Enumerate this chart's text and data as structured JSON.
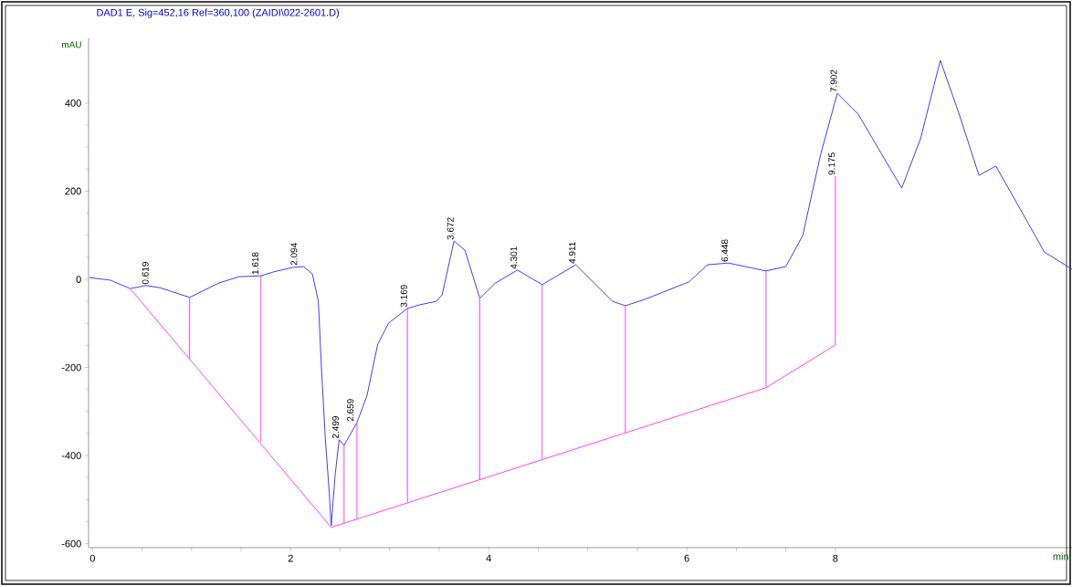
{
  "chart_data": {
    "type": "line",
    "title": "DAD1 E, Sig=452,16 Ref=360,100 (ZAIDI\\022-2601.D)",
    "xlabel": "min",
    "ylabel": "mAU",
    "xlim": [
      -0.04,
      9.89
    ],
    "ylim": [
      -609,
      547
    ],
    "xticks": [
      0,
      {
        "value": 0.5,
        "label": null
      },
      {
        "value": 1,
        "label": null
      },
      {
        "value": 1.5,
        "label": null
      },
      2,
      {
        "value": 2.5,
        "label": null
      },
      {
        "value": 3,
        "label": null
      },
      {
        "value": 3.5,
        "label": null
      },
      4,
      {
        "value": 4.5,
        "label": null
      },
      {
        "value": 5,
        "label": null
      },
      {
        "value": 5.5,
        "label": null
      },
      6,
      {
        "value": 6.5,
        "label": null
      },
      {
        "value": 7,
        "label": null
      },
      {
        "value": 7.5,
        "label": "8"
      }
    ],
    "yticks": [
      -600,
      -400,
      -200,
      0,
      200,
      400
    ],
    "series": [
      {
        "color": "#3d3dff",
        "x": [
          -0.03,
          0.18,
          0.38,
          0.54,
          0.68,
          0.98,
          1.28,
          1.48,
          1.7,
          1.83,
          2.02,
          2.13,
          2.22,
          2.28,
          2.31,
          2.35,
          2.39,
          2.41,
          2.45,
          2.49,
          2.54,
          2.67,
          2.77,
          2.88,
          2.99,
          3.18,
          3.3,
          3.47,
          3.53,
          3.65,
          3.76,
          3.91,
          4.07,
          4.29,
          4.54,
          4.88,
          5.25,
          5.38,
          5.57,
          6.02,
          6.21,
          6.42,
          6.8,
          7.0,
          7.17,
          7.35,
          7.52,
          7.73,
          8.17,
          8.36,
          8.56,
          8.75,
          8.95,
          9.12,
          9.3,
          9.61,
          9.89
        ],
        "values": [
          4,
          -2,
          -21,
          -14,
          -19,
          -41,
          -8,
          6,
          8,
          17,
          27,
          29,
          12,
          -50,
          -195,
          -360,
          -484,
          -559,
          -443,
          -364,
          -377,
          -325,
          -265,
          -147,
          -99,
          -66,
          -58,
          -50,
          -35,
          87,
          66,
          -43,
          -8,
          21,
          -12,
          33,
          -50,
          -60,
          -46,
          -6,
          33,
          37,
          19,
          29,
          99,
          282,
          422,
          375,
          207,
          319,
          497,
          375,
          236,
          257,
          186,
          62,
          23
        ]
      },
      {
        "color": "#ff40ff",
        "x": [
          0.38,
          2.41,
          6.8,
          7.5
        ],
        "values": [
          -21,
          -563,
          -246,
          -149
        ]
      },
      {
        "color": "#ff40ff",
        "x": [
          0.98,
          0.98,
          null,
          1.7,
          1.7,
          null,
          2.54,
          2.54,
          null,
          2.67,
          2.67,
          null,
          3.18,
          3.18,
          null,
          3.91,
          3.91,
          null,
          4.54,
          4.54,
          null,
          5.38,
          5.38,
          null,
          6.8,
          6.8,
          null,
          7.5,
          7.5
        ],
        "values": [
          -41,
          -180,
          null,
          8,
          -369,
          null,
          -377,
          -554,
          null,
          -325,
          -544,
          null,
          -66,
          -507,
          null,
          -43,
          -455,
          null,
          -12,
          -409,
          null,
          -60,
          -349,
          null,
          19,
          -246,
          null,
          234,
          -149
        ]
      }
    ],
    "annotations": [
      {
        "text": "0.619",
        "x": 0.57,
        "y": -14
      },
      {
        "text": "1.618",
        "x": 1.68,
        "y": 8
      },
      {
        "text": "2.094",
        "x": 2.07,
        "y": 29
      },
      {
        "text": "2.499",
        "x": 2.49,
        "y": -364
      },
      {
        "text": "2.659",
        "x": 2.64,
        "y": -325
      },
      {
        "text": "3.169",
        "x": 3.18,
        "y": -66
      },
      {
        "text": "3.672",
        "x": 3.65,
        "y": 87
      },
      {
        "text": "4.301",
        "x": 4.29,
        "y": 21
      },
      {
        "text": "4.911",
        "x": 4.88,
        "y": 33
      },
      {
        "text": "6.448",
        "x": 6.42,
        "y": 37
      },
      {
        "text": "7.902",
        "x": 7.52,
        "y": 422
      },
      {
        "text": "9.175",
        "x": 7.5,
        "y": 234
      }
    ]
  }
}
